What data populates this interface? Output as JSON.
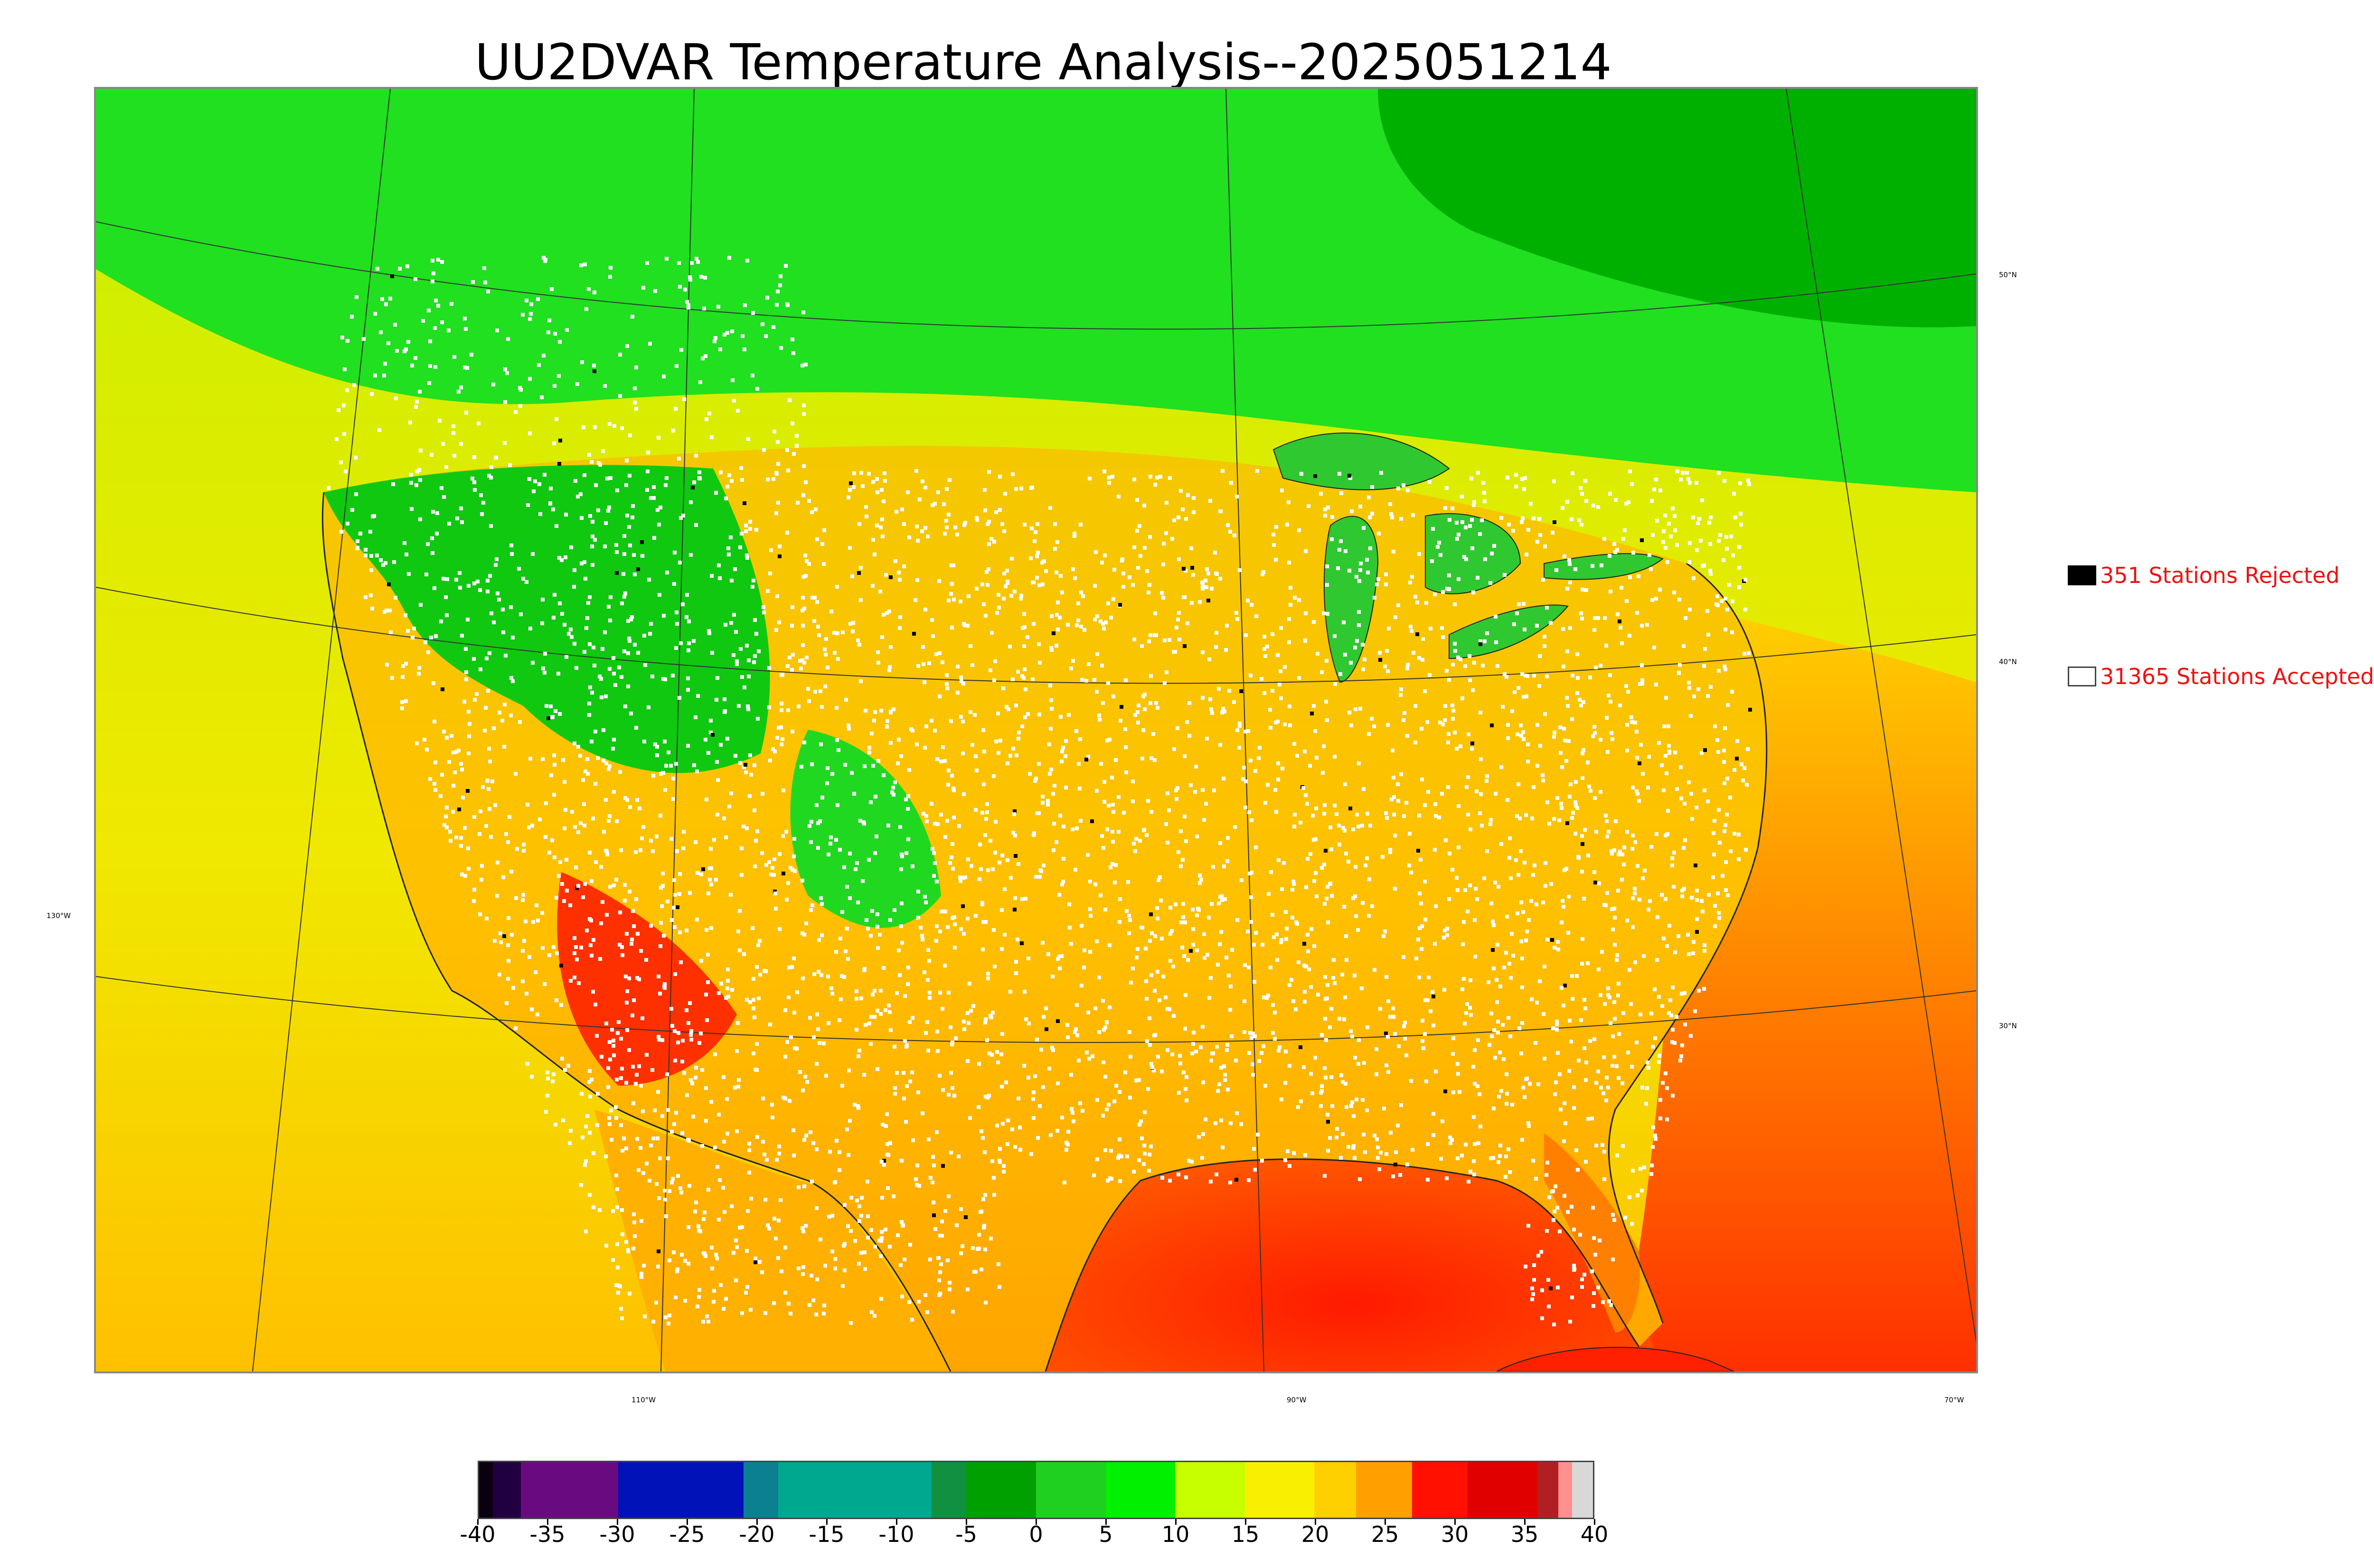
{
  "title": "UU2DVAR Temperature Analysis--2025051214",
  "map": {
    "longitude_labels": [
      {
        "text": "130°W",
        "lon": -130
      },
      {
        "text": "110°W",
        "lon": -110
      },
      {
        "text": "90°W",
        "lon": -90
      },
      {
        "text": "70°W",
        "lon": -70
      }
    ],
    "latitude_labels": [
      {
        "text": "50°N",
        "lat": 50
      },
      {
        "text": "40°N",
        "lat": 40
      },
      {
        "text": "30°N",
        "lat": 30
      }
    ],
    "water_color": "#2fbf2f",
    "station_color_accepted": "#ffffff",
    "station_color_rejected": "#000000"
  },
  "legend": {
    "rejected": {
      "label": "351 Stations Rejected",
      "count": 351
    },
    "accepted": {
      "label": "31365 Stations Accepted",
      "count": 31365
    }
  },
  "colorbar": {
    "min": -40,
    "max": 40,
    "tick_labels": [
      "-40",
      "-35",
      "-30",
      "-25",
      "-20",
      "-15",
      "-10",
      "-5",
      "0",
      "5",
      "10",
      "15",
      "20",
      "25",
      "30",
      "35",
      "40"
    ],
    "segments": [
      {
        "from": -40,
        "to": -39,
        "color": "#0a0010"
      },
      {
        "from": -39,
        "to": -37,
        "color": "#200040"
      },
      {
        "from": -37,
        "to": -30,
        "color": "#6a0a80"
      },
      {
        "from": -30,
        "to": -21,
        "color": "#0012b8"
      },
      {
        "from": -21,
        "to": -18.5,
        "color": "#0a8090"
      },
      {
        "from": -18.5,
        "to": -7.5,
        "color": "#00a890"
      },
      {
        "from": -7.5,
        "to": -5,
        "color": "#109040"
      },
      {
        "from": -5,
        "to": 0,
        "color": "#00a000"
      },
      {
        "from": 0,
        "to": 5,
        "color": "#20d020"
      },
      {
        "from": 5,
        "to": 10,
        "color": "#00f000"
      },
      {
        "from": 10,
        "to": 15,
        "color": "#c8ff00"
      },
      {
        "from": 15,
        "to": 20,
        "color": "#f8f000"
      },
      {
        "from": 20,
        "to": 23,
        "color": "#ffd000"
      },
      {
        "from": 23,
        "to": 27,
        "color": "#ffa000"
      },
      {
        "from": 27,
        "to": 31,
        "color": "#ff1000"
      },
      {
        "from": 31,
        "to": 36,
        "color": "#e00000"
      },
      {
        "from": 36,
        "to": 37.5,
        "color": "#b02020"
      },
      {
        "from": 37.5,
        "to": 38.5,
        "color": "#ff9090"
      },
      {
        "from": 38.5,
        "to": 40,
        "color": "#d8d8d8"
      }
    ]
  }
}
